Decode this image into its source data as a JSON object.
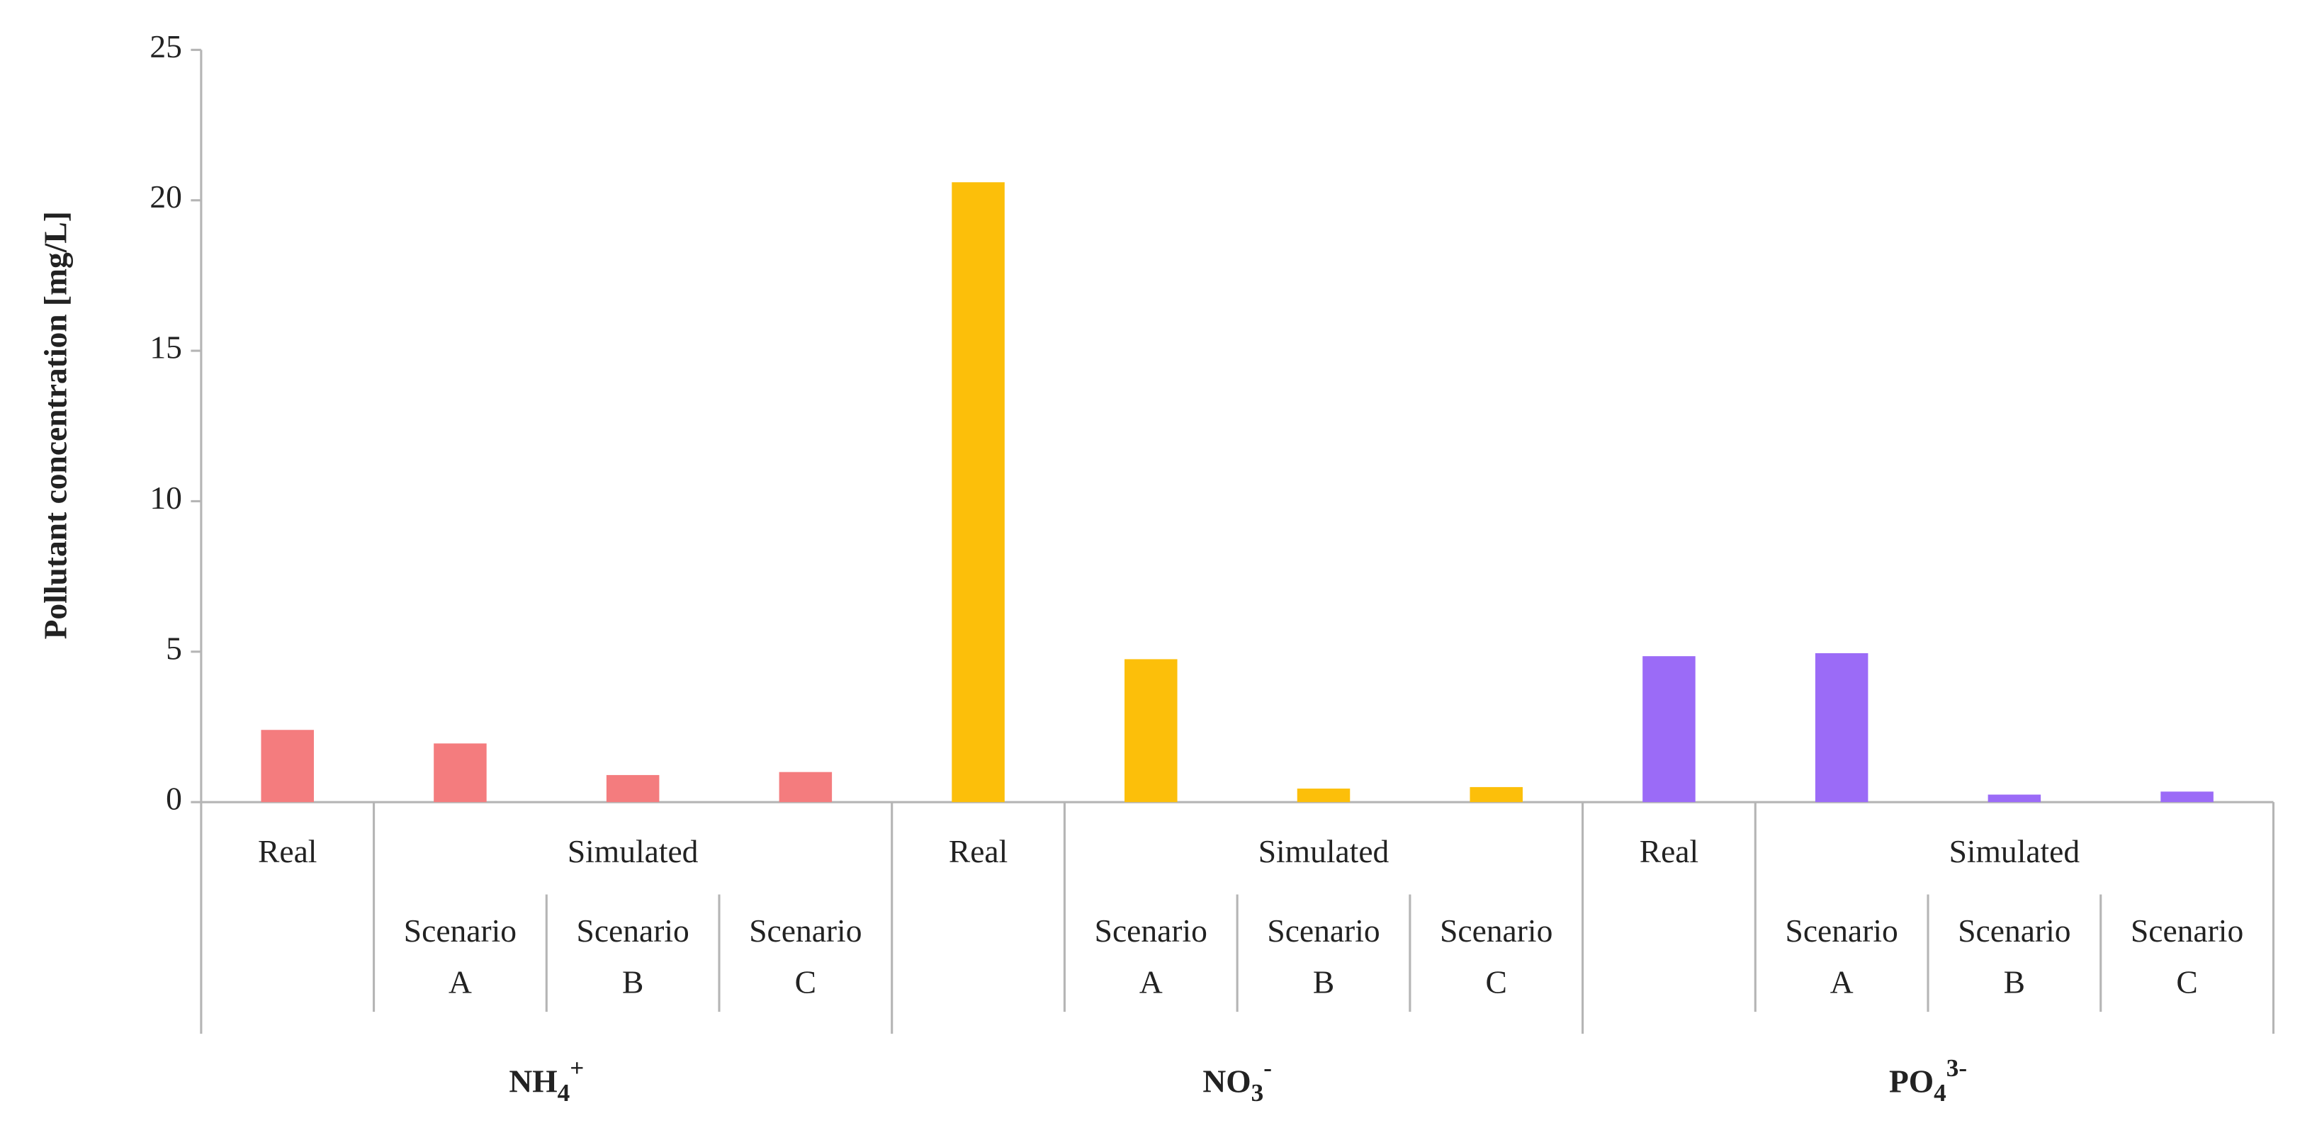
{
  "chart_data": {
    "type": "bar",
    "y_label": "Pollutant concentration [mg/L]",
    "ylim": [
      0,
      25
    ],
    "yticks": [
      0,
      5,
      10,
      15,
      20,
      25
    ],
    "groups": [
      {
        "name": {
          "base": "NH",
          "sub": "4",
          "sup": "+"
        },
        "color": "#f47c7e",
        "real": "Real",
        "simulated": "Simulated",
        "scenarios": [
          [
            "Scenario",
            "A"
          ],
          [
            "Scenario",
            "B"
          ],
          [
            "Scenario",
            "C"
          ]
        ],
        "values": [
          2.4,
          1.95,
          0.9,
          1.0
        ]
      },
      {
        "name": {
          "base": "NO",
          "sub": "3",
          "sup": "-"
        },
        "color": "#fcbf0a",
        "real": "Real",
        "simulated": "Simulated",
        "scenarios": [
          [
            "Scenario",
            "A"
          ],
          [
            "Scenario",
            "B"
          ],
          [
            "Scenario",
            "C"
          ]
        ],
        "values": [
          20.6,
          4.75,
          0.45,
          0.5
        ]
      },
      {
        "name": {
          "base": "PO",
          "sub": "4",
          "sup": "3-"
        },
        "color": "#9b6bf7",
        "real": "Real",
        "simulated": "Simulated",
        "scenarios": [
          [
            "Scenario",
            "A"
          ],
          [
            "Scenario",
            "B"
          ],
          [
            "Scenario",
            "C"
          ]
        ],
        "values": [
          4.85,
          4.95,
          0.25,
          0.35
        ]
      }
    ]
  }
}
